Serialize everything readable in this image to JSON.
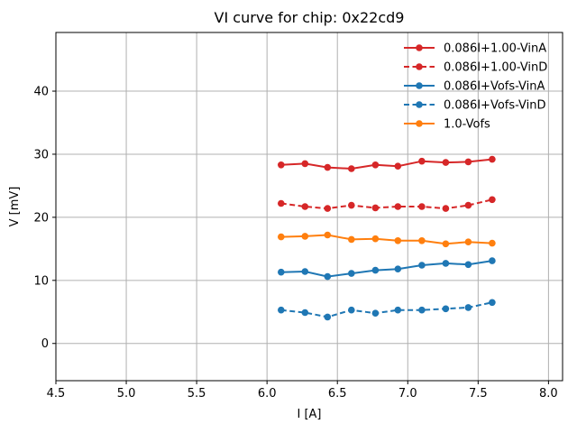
{
  "figure": {
    "background": "#ffffff",
    "grid_color": "#b0b0b0",
    "frame_color": "#000000"
  },
  "chart_data": {
    "type": "line",
    "title": "VI curve for chip: 0x22cd9",
    "xlabel": "I [A]",
    "ylabel": "V [mV]",
    "xlim": [
      4.5,
      8.1
    ],
    "ylim": [
      -5.9,
      49.3
    ],
    "xticks": [
      4.5,
      5.0,
      5.5,
      6.0,
      6.5,
      7.0,
      7.5,
      8.0
    ],
    "xtick_labels": [
      "4.5",
      "5.0",
      "5.5",
      "6.0",
      "6.5",
      "7.0",
      "7.5",
      "8.0"
    ],
    "yticks": [
      0,
      10,
      20,
      30,
      40
    ],
    "ytick_labels": [
      "0",
      "10",
      "20",
      "30",
      "40"
    ],
    "grid": true,
    "legend_position": "upper right",
    "x": [
      6.1,
      6.27,
      6.43,
      6.6,
      6.77,
      6.93,
      7.1,
      7.27,
      7.43,
      7.6
    ],
    "series": [
      {
        "name": "0.086I+1.00-VinA",
        "color": "#d62728",
        "style": "solid",
        "marker": "circle",
        "values": [
          28.3,
          28.5,
          27.9,
          27.7,
          28.3,
          28.1,
          28.9,
          28.7,
          28.8,
          29.2
        ]
      },
      {
        "name": "0.086I+1.00-VinD",
        "color": "#d62728",
        "style": "dashed",
        "marker": "circle",
        "values": [
          22.2,
          21.7,
          21.4,
          21.9,
          21.5,
          21.7,
          21.7,
          21.4,
          21.9,
          22.8
        ]
      },
      {
        "name": "0.086I+Vofs-VinA",
        "color": "#1f77b4",
        "style": "solid",
        "marker": "circle",
        "values": [
          11.3,
          11.4,
          10.6,
          11.1,
          11.6,
          11.8,
          12.4,
          12.7,
          12.5,
          13.1
        ]
      },
      {
        "name": "0.086I+Vofs-VinD",
        "color": "#1f77b4",
        "style": "dashed",
        "marker": "circle",
        "values": [
          5.3,
          4.9,
          4.2,
          5.3,
          4.8,
          5.3,
          5.3,
          5.5,
          5.7,
          6.5
        ]
      },
      {
        "name": "1.0-Vofs",
        "color": "#ff7f0e",
        "style": "solid",
        "marker": "circle",
        "values": [
          16.9,
          17.0,
          17.2,
          16.5,
          16.6,
          16.3,
          16.3,
          15.8,
          16.1,
          15.9
        ]
      }
    ]
  }
}
